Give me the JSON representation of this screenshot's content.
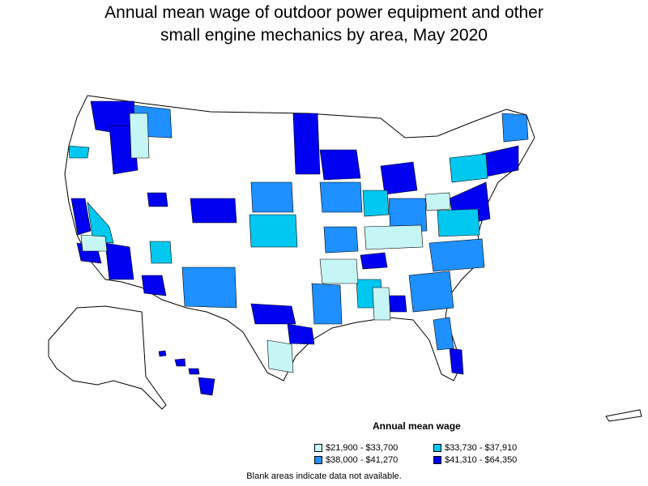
{
  "title_line1": "Annual mean wage of outdoor power equipment and other",
  "title_line2": "small engine mechanics by area, May 2020",
  "legend": {
    "title": "Annual mean wage",
    "items": [
      {
        "label": "$21,900 - $33,700",
        "color": "#c6f5f5"
      },
      {
        "label": "$33,730 - $37,910",
        "color": "#00c8f0"
      },
      {
        "label": "$38,000 - $41,270",
        "color": "#1e90ff"
      },
      {
        "label": "$41,310 - $64,350",
        "color": "#0000f0"
      }
    ]
  },
  "note": "Blank areas indicate data not available."
}
